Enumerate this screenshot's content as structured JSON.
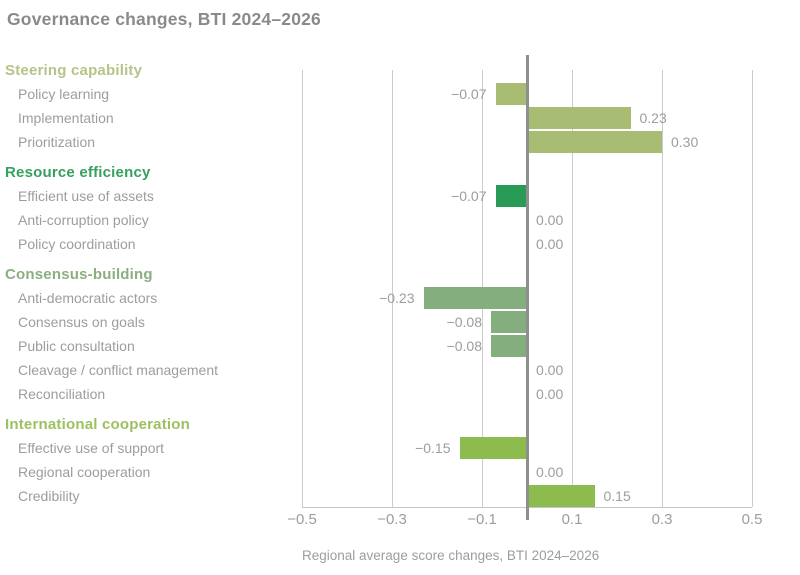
{
  "title": "Governance changes, BTI 2024–2026",
  "xlabel": "Regional average score changes, BTI 2024–2026",
  "colors": {
    "background": "#ffffff",
    "title_text": "#8a8a8a",
    "item_text": "#9d9d9d",
    "value_text": "#9d9d9d",
    "tick_text": "#9d9d9d",
    "gridline": "#cccccc",
    "zero_line": "#8f8f8f",
    "axis_line": "#c6c6c6"
  },
  "chart_data": {
    "type": "bar",
    "orientation": "horizontal",
    "title": "Governance changes, BTI 2024–2026",
    "xlabel": "Regional average score changes, BTI 2024–2026",
    "xlim": [
      -0.5,
      0.5
    ],
    "grid": true,
    "ticks": [
      {
        "value": -0.5,
        "label": "−0.5"
      },
      {
        "value": -0.3,
        "label": "−0.3"
      },
      {
        "value": -0.1,
        "label": "−0.1"
      },
      {
        "value": 0.1,
        "label": "0.1"
      },
      {
        "value": 0.3,
        "label": "0.3"
      },
      {
        "value": 0.5,
        "label": "0.5"
      }
    ],
    "groups": [
      {
        "label": "Steering capability",
        "header_color": "#b5c489",
        "bar_color": "#a9bc74",
        "items": [
          {
            "label": "Policy learning",
            "value": -0.07,
            "value_label": "−0.07"
          },
          {
            "label": "Implementation",
            "value": 0.23,
            "value_label": "0.23"
          },
          {
            "label": "Prioritization",
            "value": 0.3,
            "value_label": "0.30"
          }
        ]
      },
      {
        "label": "Resource efficiency",
        "header_color": "#36a05e",
        "bar_color": "#2a9b57",
        "items": [
          {
            "label": "Efficient use of assets",
            "value": -0.07,
            "value_label": "−0.07"
          },
          {
            "label": "Anti-corruption policy",
            "value": 0,
            "value_label": "0.00"
          },
          {
            "label": "Policy coordination",
            "value": 0,
            "value_label": "0.00"
          }
        ]
      },
      {
        "label": "Consensus-building",
        "header_color": "#8aaf81",
        "bar_color": "#85ae7e",
        "items": [
          {
            "label": "Anti-democratic actors",
            "value": -0.23,
            "value_label": "−0.23"
          },
          {
            "label": "Consensus on goals",
            "value": -0.08,
            "value_label": "−0.08"
          },
          {
            "label": "Public consultation",
            "value": -0.08,
            "value_label": "−0.08"
          },
          {
            "label": "Cleavage / conflict management",
            "value": 0,
            "value_label": "0.00"
          },
          {
            "label": "Reconciliation",
            "value": 0,
            "value_label": "0.00"
          }
        ]
      },
      {
        "label": "International cooperation",
        "header_color": "#9cc161",
        "bar_color": "#8cbb4e",
        "items": [
          {
            "label": "Effective use of support",
            "value": -0.15,
            "value_label": "−0.15"
          },
          {
            "label": "Regional cooperation",
            "value": 0,
            "value_label": "0.00"
          },
          {
            "label": "Credibility",
            "value": 0.15,
            "value_label": "0.15"
          }
        ]
      }
    ]
  }
}
